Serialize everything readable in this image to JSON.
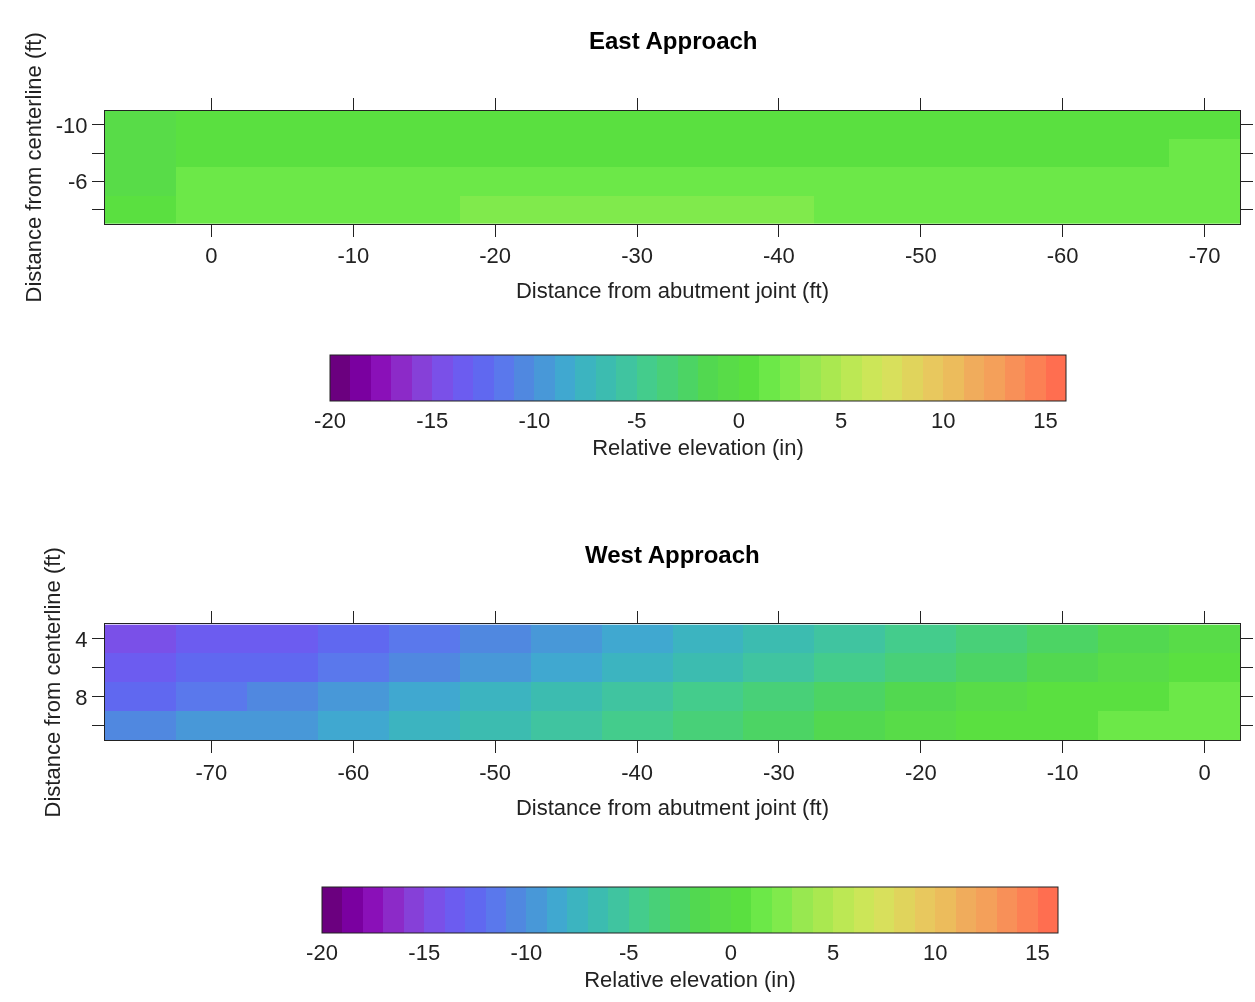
{
  "chart_data": [
    {
      "type": "heatmap",
      "title": "East Approach",
      "xlabel": "Distance from abutment joint (ft)",
      "ylabel": "Distance from centerline (ft)",
      "clabel": "Relative elevation (in)",
      "categories": [
        null,
        "0",
        null,
        "-10",
        null,
        "-20",
        null,
        "-30",
        null,
        "-40",
        null,
        "-50",
        null,
        "-60",
        null,
        "-70"
      ],
      "y_categories": [
        "-10",
        null,
        "-6",
        null
      ],
      "cells": [
        [
          -0.8,
          0.2,
          0.4,
          0.5,
          0.5,
          0.5,
          0.5,
          0.5,
          0.5,
          0.5,
          0.5,
          0.5,
          0.5,
          0.5,
          0.6,
          0.8
        ],
        [
          -0.5,
          0.5,
          0.7,
          0.8,
          0.8,
          0.8,
          0.8,
          0.9,
          0.9,
          0.8,
          0.8,
          0.7,
          0.8,
          0.9,
          0.9,
          1.2
        ],
        [
          -0.2,
          1.1,
          1.3,
          1.4,
          1.4,
          1.4,
          1.5,
          1.5,
          1.5,
          1.4,
          1.3,
          1.2,
          1.4,
          1.5,
          1.5,
          1.6
        ],
        [
          0.3,
          1.3,
          1.5,
          1.6,
          1.7,
          2.1,
          2.2,
          2.2,
          2.1,
          2.1,
          1.8,
          1.6,
          1.6,
          1.7,
          1.7,
          1.8
        ]
      ],
      "clim": [
        -20,
        16
      ],
      "cticks": [
        -20,
        -15,
        -10,
        -5,
        0,
        5,
        10,
        15
      ],
      "colors": [
        "#6b007f",
        "#7a00a0",
        "#8a10b8",
        "#8c2ac8",
        "#8640d8",
        "#7a50e8",
        "#6c5cf0",
        "#6068f0",
        "#5a78ec",
        "#5088e0",
        "#4898d8",
        "#40a8d0",
        "#3cb4c0",
        "#3cbcb0",
        "#40c4a0",
        "#44cc8c",
        "#48d078",
        "#4cd464",
        "#52d850",
        "#58dc48",
        "#5ae040",
        "#6ce848",
        "#80ea4c",
        "#98e850",
        "#aae850",
        "#bce854",
        "#cce658",
        "#d8e05c",
        "#e0d45c",
        "#e8c85e",
        "#ecbc5c",
        "#f0ac5c",
        "#f4a05a",
        "#f89058",
        "#fc8054",
        "#ff6e50"
      ]
    },
    {
      "type": "heatmap",
      "title": "West Approach",
      "xlabel": "Distance from abutment joint (ft)",
      "ylabel": "Distance from centerline (ft)",
      "clabel": "Relative elevation (in)",
      "categories": [
        null,
        "-70",
        null,
        "-60",
        null,
        "-50",
        null,
        "-40",
        null,
        "-30",
        null,
        "-20",
        null,
        "-10",
        null,
        "0"
      ],
      "y_categories": [
        "4",
        null,
        "8",
        null
      ],
      "cells": [
        [
          -14.2,
          -14.0,
          -13.6,
          -12.6,
          -11.6,
          -10.6,
          -9.6,
          -8.6,
          -7.6,
          -6.6,
          -5.6,
          -4.6,
          -3.6,
          -2.6,
          -1.6,
          -0.6
        ],
        [
          -13.4,
          -12.8,
          -12.1,
          -11.1,
          -10.1,
          -9.1,
          -8.1,
          -7.1,
          -6.1,
          -5.1,
          -4.1,
          -3.1,
          -2.1,
          -1.1,
          -0.1,
          0.6
        ],
        [
          -12.2,
          -11.4,
          -10.6,
          -9.6,
          -8.6,
          -7.6,
          -6.6,
          -5.6,
          -4.6,
          -3.6,
          -2.6,
          -1.6,
          -0.7,
          0,
          0.6,
          1.2
        ],
        [
          -10.9,
          -9.9,
          -9.1,
          -8.1,
          -7.1,
          -6.1,
          -5.1,
          -4.1,
          -3.1,
          -2.1,
          -1.1,
          -0.3,
          0.3,
          0.8,
          1.3,
          1.7
        ]
      ],
      "clim": [
        -20,
        16
      ],
      "cticks": [
        -20,
        -15,
        -10,
        -5,
        0,
        5,
        10,
        15
      ],
      "colors": [
        "#6b007f",
        "#7a00a0",
        "#8a10b8",
        "#8c2ac8",
        "#8640d8",
        "#7a50e8",
        "#6c5cf0",
        "#6068f0",
        "#5a78ec",
        "#5088e0",
        "#4898d8",
        "#40a8d0",
        "#3cb4c0",
        "#3cbcb0",
        "#40c4a0",
        "#44cc8c",
        "#48d078",
        "#4cd464",
        "#52d850",
        "#58dc48",
        "#5ae040",
        "#6ce848",
        "#80ea4c",
        "#98e850",
        "#aae850",
        "#bce854",
        "#cce658",
        "#d8e05c",
        "#e0d45c",
        "#e8c85e",
        "#ecbc5c",
        "#f0ac5c",
        "#f4a05a",
        "#f89058",
        "#fc8054",
        "#ff6e50"
      ]
    }
  ]
}
